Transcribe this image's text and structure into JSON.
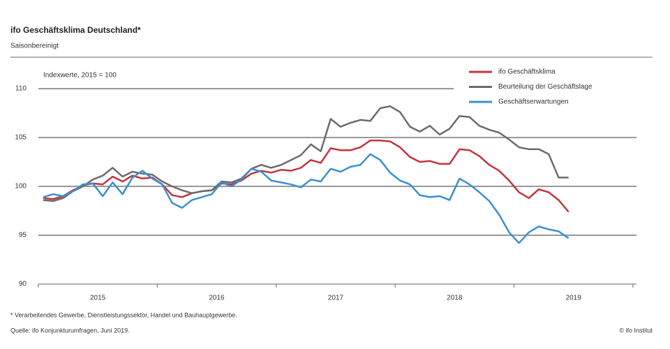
{
  "chart_data": {
    "type": "line",
    "title": "ifo Geschäftsklima Deutschland*",
    "subtitle": "Saisonbereinigt",
    "annotation": "Indexwerte, 2015 = 100",
    "footnote": "* Verarbeitendes Gewerbe, Dienstleistungssektor, Handel und Bauhauptgewerbe.",
    "source": "Quelle: ifo Konjunkturumfragen, Juni 2019.",
    "credit": "© ifo Institut",
    "categories": [
      null,
      null,
      null,
      null,
      null,
      null,
      "2015",
      null,
      null,
      null,
      null,
      null,
      null,
      null,
      null,
      null,
      null,
      null,
      "2016",
      null,
      null,
      null,
      null,
      null,
      null,
      null,
      null,
      null,
      null,
      null,
      "2017",
      null,
      null,
      null,
      null,
      null,
      null,
      null,
      null,
      null,
      null,
      null,
      "2018",
      null,
      null,
      null,
      null,
      null,
      null,
      null,
      null,
      null,
      null,
      null,
      "2019",
      null,
      null,
      null,
      null,
      null
    ],
    "series": [
      {
        "name": "ifo Geschäftsklima",
        "color": "#c4343c",
        "values": [
          98.8,
          98.7,
          99.0,
          99.6,
          100.1,
          100.3,
          100.2,
          101.0,
          100.5,
          101.1,
          100.8,
          100.9,
          100.2,
          99.1,
          98.9,
          99.3,
          99.5,
          99.6,
          100.3,
          100.2,
          100.6,
          101.3,
          101.6,
          101.4,
          101.7,
          101.6,
          101.9,
          102.7,
          102.4,
          103.9,
          103.7,
          103.7,
          104.0,
          104.7,
          104.7,
          104.6,
          104.0,
          103.0,
          102.5,
          102.6,
          102.3,
          102.3,
          103.8,
          103.7,
          103.1,
          102.2,
          101.6,
          100.6,
          99.4,
          98.8,
          99.7,
          99.4,
          98.6,
          97.4,
          null,
          null,
          null,
          null,
          null,
          null
        ]
      },
      {
        "name": "Beurteilung der Geschäftslage",
        "color": "#6b6b6b",
        "values": [
          98.6,
          98.5,
          98.8,
          99.5,
          100.0,
          100.7,
          101.1,
          101.9,
          101.0,
          101.5,
          101.3,
          101.2,
          100.5,
          100.0,
          99.6,
          99.3,
          99.5,
          99.6,
          100.5,
          100.4,
          100.8,
          101.8,
          102.2,
          101.9,
          102.2,
          102.7,
          103.2,
          104.3,
          103.6,
          106.9,
          106.1,
          106.5,
          106.8,
          106.7,
          108.0,
          108.2,
          107.6,
          106.1,
          105.6,
          106.2,
          105.3,
          105.9,
          107.2,
          107.1,
          106.2,
          105.8,
          105.5,
          104.8,
          104.0,
          103.8,
          103.8,
          103.3,
          100.9,
          100.9,
          null,
          null,
          null,
          null,
          null,
          null
        ]
      },
      {
        "name": "Geschäftserwartungen",
        "color": "#3a8fd0",
        "values": [
          98.9,
          99.2,
          99.0,
          99.5,
          100.2,
          100.3,
          99.0,
          100.4,
          99.2,
          100.9,
          101.6,
          100.8,
          100.2,
          98.3,
          97.8,
          98.6,
          98.9,
          99.2,
          100.4,
          100.0,
          100.7,
          101.8,
          101.5,
          100.6,
          100.4,
          100.2,
          99.9,
          100.7,
          100.5,
          101.8,
          101.5,
          102.0,
          102.2,
          103.3,
          102.7,
          101.4,
          100.6,
          100.2,
          99.1,
          98.9,
          99.0,
          98.6,
          100.8,
          100.2,
          99.4,
          98.5,
          97.1,
          95.3,
          94.2,
          95.3,
          95.9,
          95.6,
          95.4,
          94.7,
          null,
          null,
          null,
          null,
          null,
          null
        ]
      }
    ],
    "ylim": [
      90,
      112
    ],
    "yticks": [
      90,
      95,
      100,
      105,
      110
    ],
    "grid": true,
    "legend": "top-right"
  }
}
